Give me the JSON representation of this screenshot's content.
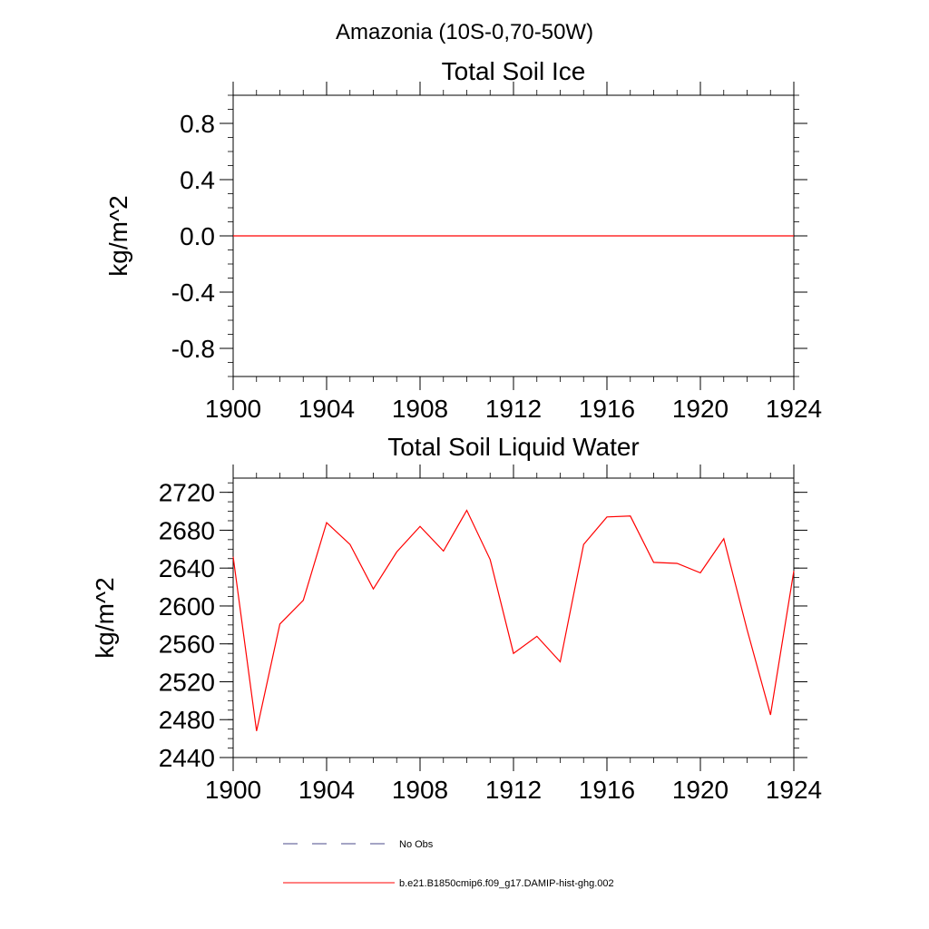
{
  "main_title": "Amazonia (10S-0,70-50W)",
  "chart_data": [
    {
      "type": "line",
      "title": "Total Soil Ice",
      "xlabel": "",
      "ylabel": "kg/m^2",
      "xlim": [
        1900,
        1924
      ],
      "ylim": [
        -1.0,
        1.0
      ],
      "x_ticks": [
        1900,
        1904,
        1908,
        1912,
        1916,
        1920,
        1924
      ],
      "x_tick_labels": [
        "1900",
        "1904",
        "1908",
        "1912",
        "1916",
        "1920",
        "1924"
      ],
      "y_ticks": [
        0.8,
        0.4,
        0.0,
        -0.4,
        -0.8
      ],
      "y_tick_labels": [
        "0.8",
        "0.4",
        "0.0",
        "-0.4",
        "-0.8"
      ],
      "grid": false,
      "series": [
        {
          "name": "b.e21.B1850cmip6.f09_g17.DAMIP-hist-ghg.002",
          "color": "#ff0000",
          "x": [
            1900,
            1901,
            1902,
            1903,
            1904,
            1905,
            1906,
            1907,
            1908,
            1909,
            1910,
            1911,
            1912,
            1913,
            1914,
            1915,
            1916,
            1917,
            1918,
            1919,
            1920,
            1921,
            1922,
            1923,
            1924
          ],
          "values": [
            0,
            0,
            0,
            0,
            0,
            0,
            0,
            0,
            0,
            0,
            0,
            0,
            0,
            0,
            0,
            0,
            0,
            0,
            0,
            0,
            0,
            0,
            0,
            0,
            0
          ]
        }
      ]
    },
    {
      "type": "line",
      "title": "Total Soil Liquid Water",
      "xlabel": "",
      "ylabel": "kg/m^2",
      "xlim": [
        1900,
        1924
      ],
      "ylim": [
        2440,
        2735
      ],
      "x_ticks": [
        1900,
        1904,
        1908,
        1912,
        1916,
        1920,
        1924
      ],
      "x_tick_labels": [
        "1900",
        "1904",
        "1908",
        "1912",
        "1916",
        "1920",
        "1924"
      ],
      "y_ticks": [
        2720,
        2680,
        2640,
        2600,
        2560,
        2520,
        2480,
        2440
      ],
      "y_tick_labels": [
        "2720",
        "2680",
        "2640",
        "2600",
        "2560",
        "2520",
        "2480",
        "2440"
      ],
      "grid": false,
      "series": [
        {
          "name": "b.e21.B1850cmip6.f09_g17.DAMIP-hist-ghg.002",
          "color": "#ff0000",
          "x": [
            1900,
            1901,
            1902,
            1903,
            1904,
            1905,
            1906,
            1907,
            1908,
            1909,
            1910,
            1911,
            1912,
            1913,
            1914,
            1915,
            1916,
            1917,
            1918,
            1919,
            1920,
            1921,
            1922,
            1923,
            1924
          ],
          "values": [
            2652,
            2468,
            2581,
            2606,
            2688,
            2665,
            2618,
            2657,
            2684,
            2658,
            2701,
            2649,
            2550,
            2568,
            2541,
            2665,
            2694,
            2695,
            2646,
            2645,
            2635,
            2671,
            2575,
            2485,
            2637
          ]
        }
      ]
    }
  ],
  "legend": {
    "placement": "bottom",
    "entries": [
      {
        "label": "No Obs",
        "color": "#4a4a8a",
        "style": "dashed"
      },
      {
        "label": "b.e21.B1850cmip6.f09_g17.DAMIP-hist-ghg.002",
        "color": "#ff0000",
        "style": "solid"
      }
    ]
  }
}
